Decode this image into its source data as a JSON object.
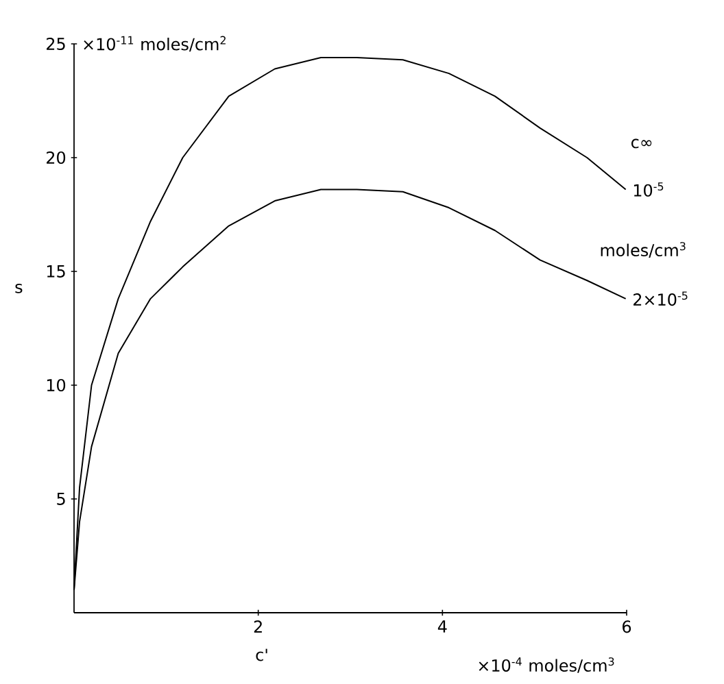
{
  "chart_data": {
    "type": "line",
    "xlabel": "c'",
    "ylabel": "s",
    "legend_title": "c∞",
    "xlim": [
      0,
      6
    ],
    "ylim": [
      0,
      25
    ],
    "xticks": [
      2,
      4,
      6
    ],
    "yticks": [
      5,
      10,
      15,
      20,
      25
    ],
    "line_style": "solid",
    "grid": false,
    "annotations": [
      "×10$^{-11}$ moles/cm$^{2}$",
      "×10$^{-4}$ moles/cm$^{3}$",
      "moles/cm$^{3}$"
    ],
    "series": [
      {
        "name": "10$^{-5}$",
        "color": "#000000",
        "x": [
          0,
          0.06,
          0.19,
          0.48,
          0.83,
          1.18,
          1.68,
          2.18,
          2.68,
          3.07,
          3.57,
          4.07,
          4.57,
          5.06,
          5.57,
          5.99
        ],
        "values": [
          1.0,
          5.5,
          10,
          13.8,
          17.2,
          20,
          22.7,
          23.9,
          24.4,
          24.4,
          24.3,
          23.7,
          22.7,
          21.3,
          20.0,
          18.6
        ]
      },
      {
        "name": "2×10$^{-5}$",
        "color": "#000000",
        "x": [
          0,
          0.06,
          0.19,
          0.48,
          0.83,
          1.18,
          1.68,
          2.18,
          2.68,
          3.07,
          3.57,
          4.07,
          4.57,
          5.06,
          5.57,
          5.99
        ],
        "values": [
          1.0,
          4.0,
          7.3,
          11.4,
          13.8,
          15.2,
          17.0,
          18.1,
          18.6,
          18.6,
          18.5,
          17.8,
          16.8,
          15.5,
          14.6,
          13.8
        ]
      }
    ]
  }
}
